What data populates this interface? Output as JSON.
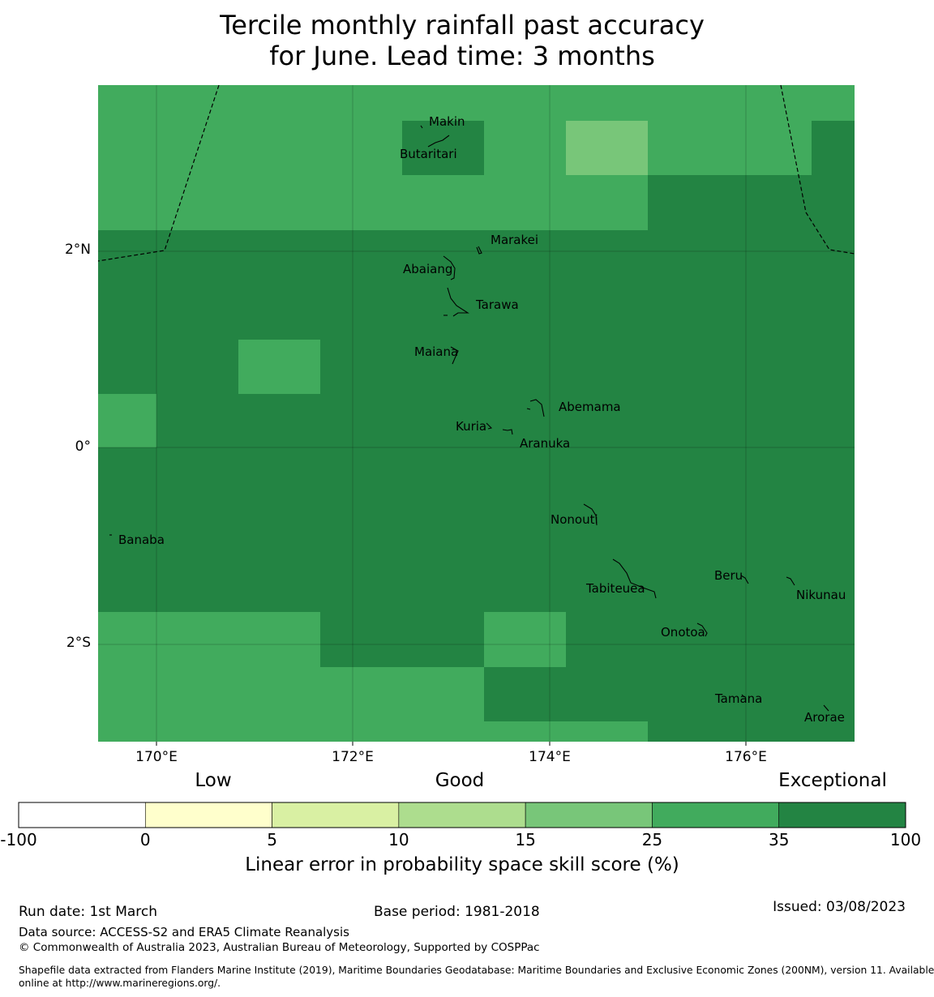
{
  "title": {
    "line1": "Tercile monthly rainfall past accuracy",
    "line2": "for June. Lead time: 3 months"
  },
  "map": {
    "axes": {
      "x_ticks": [
        "170°E",
        "172°E",
        "174°E",
        "176°E"
      ],
      "y_ticks": [
        "2°N",
        "0°",
        "2°S"
      ]
    },
    "islands": [
      {
        "name": "Makin"
      },
      {
        "name": "Butaritari"
      },
      {
        "name": "Marakei"
      },
      {
        "name": "Abaiang"
      },
      {
        "name": "Tarawa"
      },
      {
        "name": "Maiana"
      },
      {
        "name": "Abemama"
      },
      {
        "name": "Kuria"
      },
      {
        "name": "Aranuka"
      },
      {
        "name": "Banaba"
      },
      {
        "name": "Nonouti"
      },
      {
        "name": "Beru"
      },
      {
        "name": "Tabiteuea"
      },
      {
        "name": "Nikunau"
      },
      {
        "name": "Onotoa"
      },
      {
        "name": "Tamana"
      },
      {
        "name": "Arorae"
      }
    ],
    "colors": {
      "class_25_35": "#41ab5d",
      "class_35_100": "#238443",
      "class_15_25": "#78c679"
    }
  },
  "colorbar": {
    "category_labels": [
      "Low",
      "Good",
      "Exceptional"
    ],
    "ticks": [
      "-100",
      "0",
      "5",
      "10",
      "15",
      "25",
      "35",
      "100"
    ],
    "colors": [
      "#ffffff",
      "#ffffcc",
      "#d9f0a3",
      "#addd8e",
      "#78c679",
      "#41ab5d",
      "#238443"
    ],
    "label": "Linear error in probability space skill score (%)"
  },
  "footer": {
    "run_date": "Run date: 1st March",
    "base_period": "Base period: 1981-2018",
    "issued": "Issued: 03/08/2023",
    "data_source": "Data source: ACCESS-S2 and ERA5 Climate Reanalysis",
    "copyright": "© Commonwealth of Australia 2023, Australian Bureau of Meteorology, Supported by COSPPac",
    "shapefile_line1": "Shapefile data extracted from Flanders Marine Institute (2019), Maritime Boundaries Geodatabase: Maritime Boundaries and Exclusive Economic Zones (200NM), version 11. Available",
    "shapefile_line2": "online at http://www.marineregions.org/."
  }
}
